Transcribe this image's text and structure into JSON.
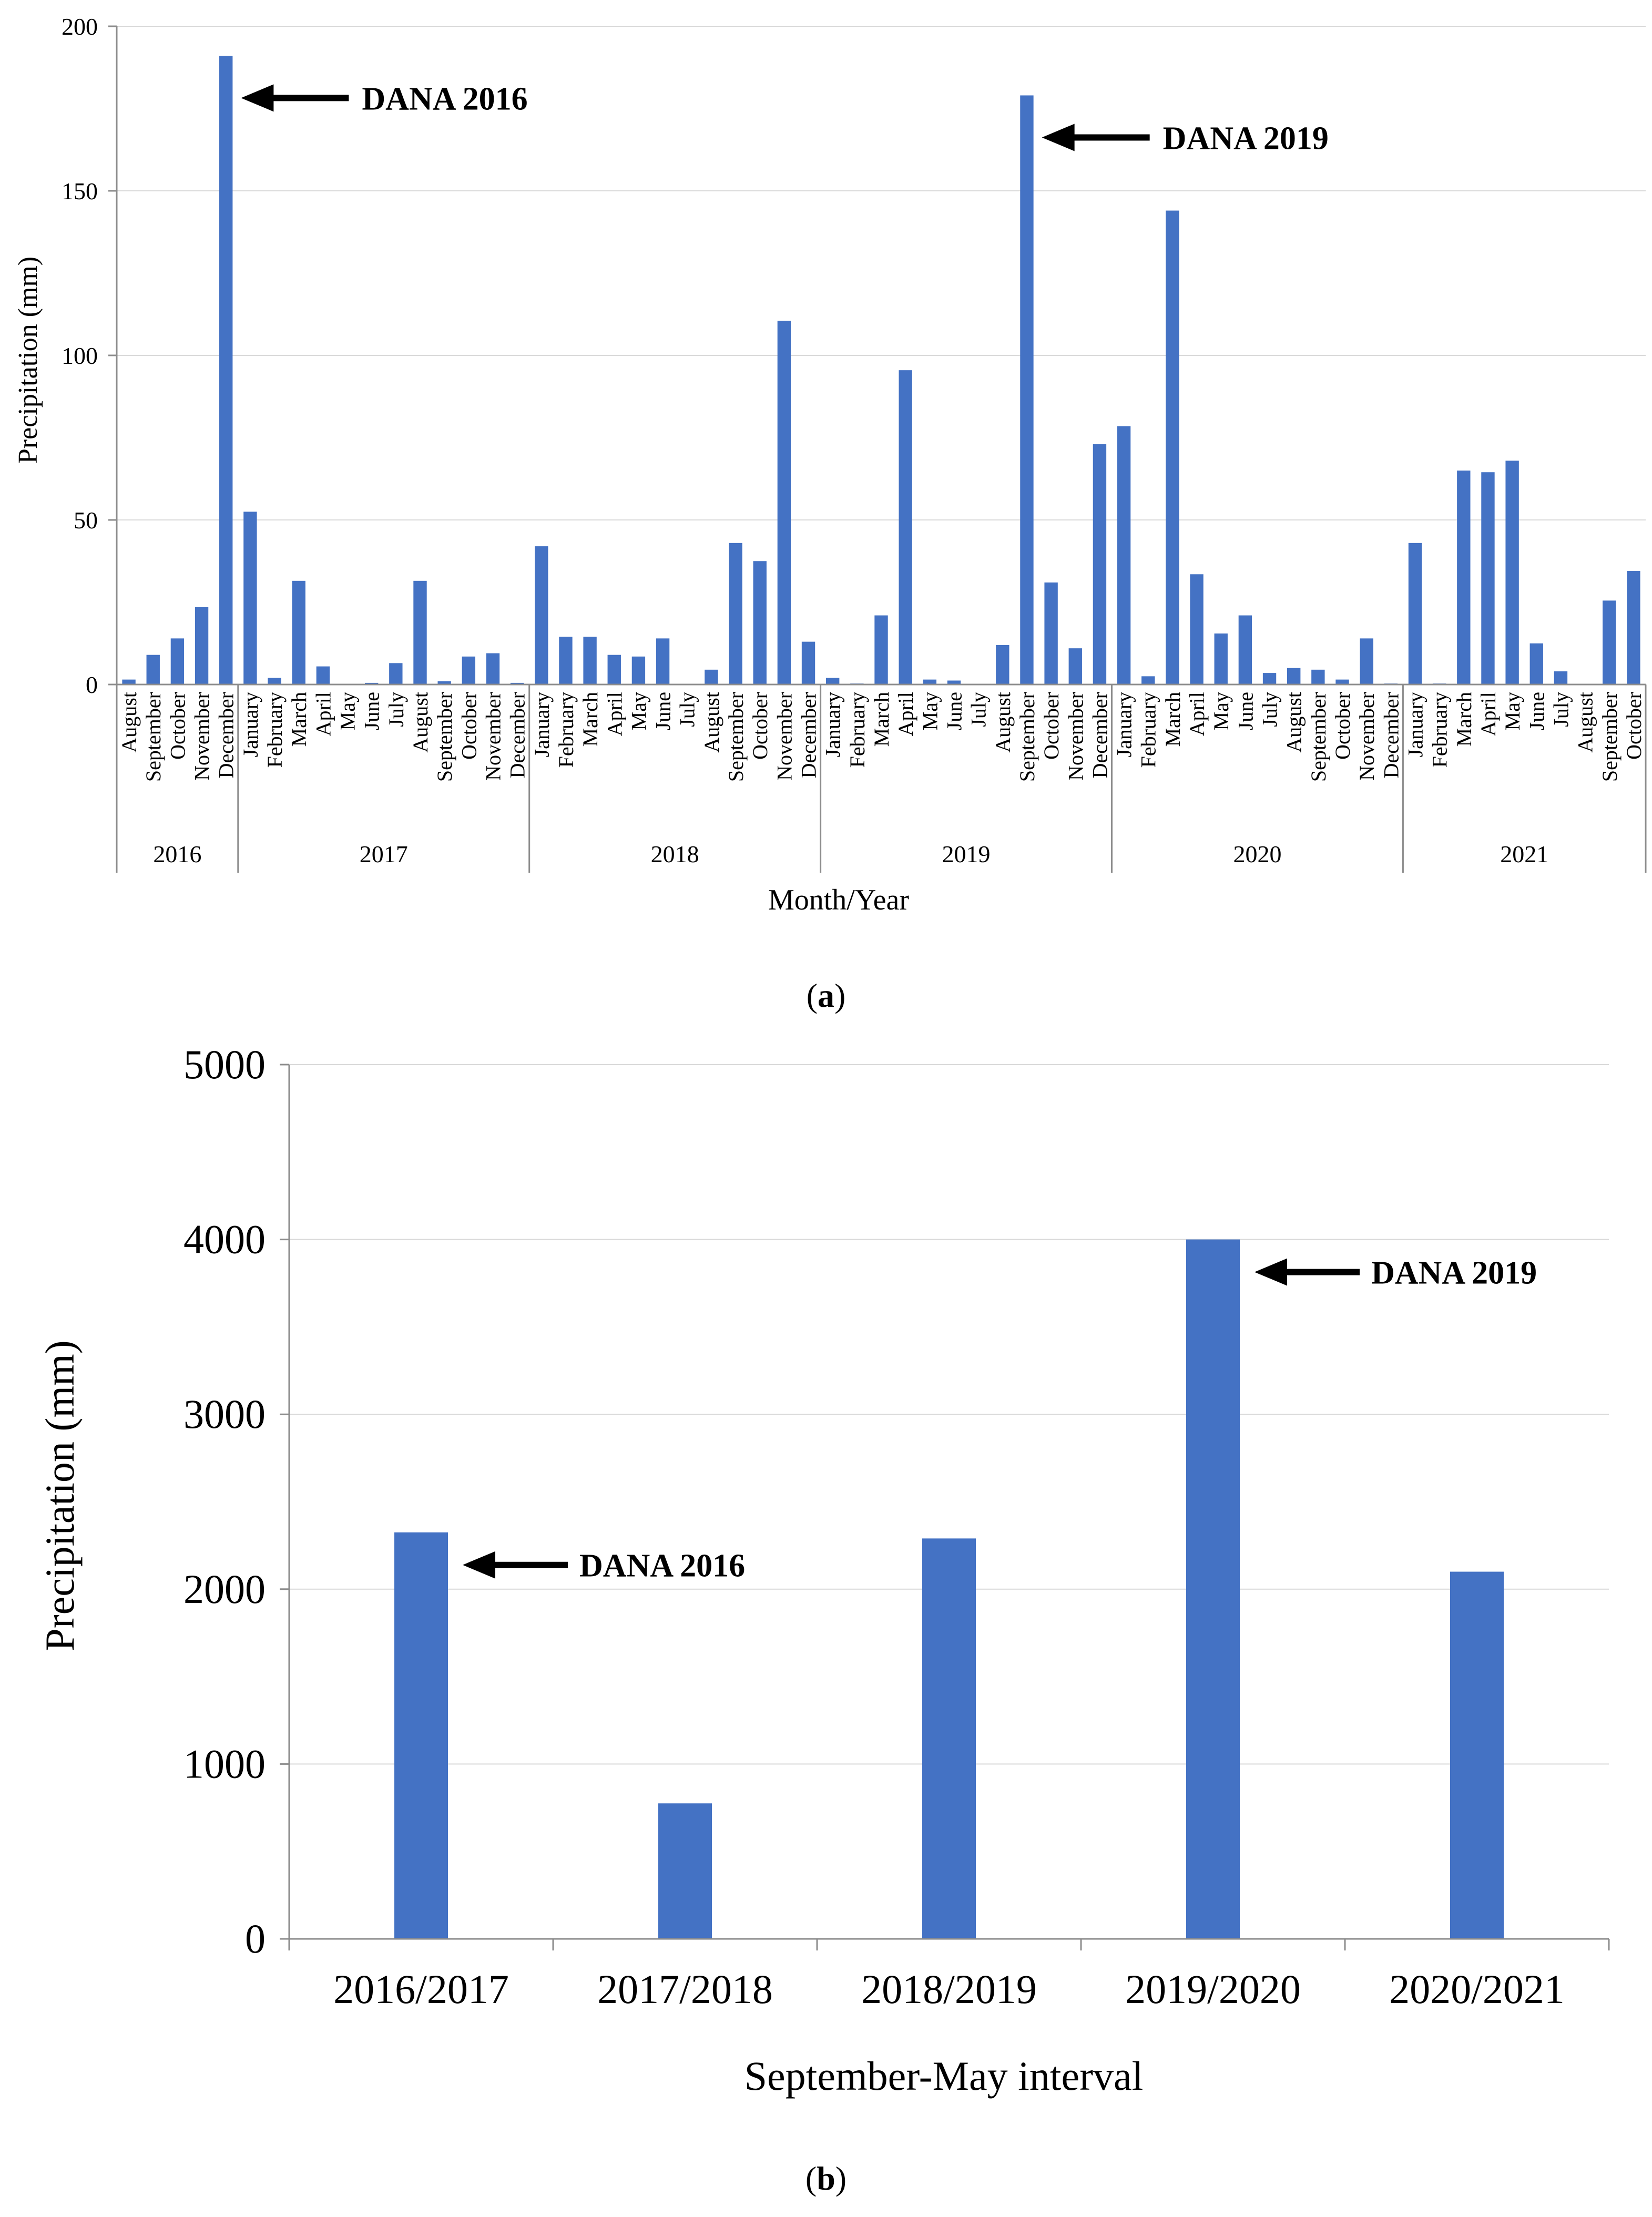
{
  "chart_data": [
    {
      "type": "bar",
      "panel_label": "a",
      "title": "",
      "xlabel": "Month/Year",
      "ylabel": "Precipitation (mm)",
      "ylim": [
        0,
        200
      ],
      "yticks": [
        "0",
        "50",
        "100",
        "150",
        "200"
      ],
      "grid": true,
      "groups": [
        {
          "year": "2016",
          "months": [
            "August",
            "September",
            "October",
            "November",
            "December"
          ]
        },
        {
          "year": "2017",
          "months": [
            "January",
            "February",
            "March",
            "April",
            "May",
            "June",
            "July",
            "August",
            "September",
            "October",
            "November",
            "December"
          ]
        },
        {
          "year": "2018",
          "months": [
            "January",
            "February",
            "March",
            "April",
            "May",
            "June",
            "July",
            "August",
            "September",
            "October",
            "November",
            "December"
          ]
        },
        {
          "year": "2019",
          "months": [
            "January",
            "February",
            "March",
            "April",
            "May",
            "June",
            "July",
            "August",
            "September",
            "October",
            "November",
            "December"
          ]
        },
        {
          "year": "2020",
          "months": [
            "January",
            "February",
            "March",
            "April",
            "May",
            "June",
            "July",
            "August",
            "September",
            "October",
            "November",
            "December"
          ]
        },
        {
          "year": "2021",
          "months": [
            "January",
            "February",
            "March",
            "April",
            "May",
            "June",
            "July",
            "August",
            "September",
            "October"
          ]
        }
      ],
      "values": [
        1.5,
        9,
        14,
        23.5,
        191,
        52.5,
        2,
        31.5,
        5.5,
        0,
        0.5,
        6.5,
        31.5,
        1,
        8.5,
        9.5,
        0.5,
        42,
        14.5,
        14.5,
        9,
        8.5,
        14,
        0,
        4.5,
        43,
        37.5,
        110.5,
        13,
        2,
        0.3,
        21,
        95.5,
        1.5,
        1.2,
        0.2,
        12,
        179,
        31,
        11,
        73,
        78.5,
        2.5,
        144,
        33.5,
        15.5,
        21,
        3.5,
        5,
        4.5,
        1.5,
        14,
        0.3,
        43,
        0.3,
        65,
        64.5,
        68,
        12.5,
        4,
        0,
        25.5,
        34.5
      ],
      "annotations": [
        {
          "text": "DANA 2016",
          "target": "December 2016"
        },
        {
          "text": "DANA 2019",
          "target": "September 2019"
        }
      ]
    },
    {
      "type": "bar",
      "panel_label": "b",
      "title": "",
      "xlabel": "September-May interval",
      "ylabel": "Precipitation (mm)",
      "ylim": [
        0,
        5000
      ],
      "yticks": [
        "0",
        "1000",
        "2000",
        "3000",
        "4000",
        "5000"
      ],
      "grid": true,
      "categories": [
        "2016/2017",
        "2017/2018",
        "2018/2019",
        "2019/2020",
        "2020/2021"
      ],
      "values": [
        2325,
        775,
        2290,
        4000,
        2100
      ],
      "annotations": [
        {
          "text": "DANA 2016",
          "target": "2016/2017"
        },
        {
          "text": "DANA 2019",
          "target": "2019/2020"
        }
      ]
    }
  ]
}
